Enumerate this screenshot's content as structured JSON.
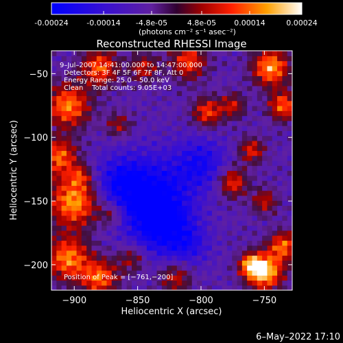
{
  "colorbar": {
    "tick_labels": [
      "-0.00024",
      "-0.00014",
      "-4.8e-05",
      "4.8e-05",
      "0.00014",
      "0.00024"
    ],
    "tick_values": [
      -0.00024,
      -0.00014,
      -4.8e-05,
      4.8e-05,
      0.00014,
      0.00024
    ],
    "range": [
      -0.00024,
      0.00024
    ],
    "units": "(photons cm⁻² s⁻¹ asec⁻²)",
    "colors": [
      "#0000ff",
      "#5a1aa6",
      "#a00000",
      "#ff2a00",
      "#ffa000",
      "#ffffff"
    ]
  },
  "chart_data": {
    "type": "heatmap",
    "title": "Reconstructed RHESSI Image",
    "xlabel": "Heliocentric X (arcsec)",
    "ylabel": "Heliocentric Y (arcsec)",
    "xlim": [
      -918,
      -728
    ],
    "ylim": [
      -220,
      -32
    ],
    "x_ticks": [
      -900,
      -850,
      -800,
      -750
    ],
    "x_tick_labels": [
      "−900",
      "−850",
      "−800",
      "−750"
    ],
    "y_ticks": [
      -50,
      -100,
      -150,
      -200
    ],
    "y_tick_labels": [
      "−50",
      "−100",
      "−150",
      "−200"
    ],
    "z_range": [
      -0.00024,
      0.00024
    ],
    "peak_position": [
      -761,
      -200
    ],
    "annotations": [
      "9–Jul–2007 14:41:00.000 to 14:47:00.000",
      "Detectors: 3F 4F 5F 6F 7F 8F, Att 0",
      "Energy Range: 25.0 – 50.0 keV",
      "Clean    Total counts: 9.05E+03",
      "Position of Peak = [−761,−200]"
    ]
  },
  "footer": {
    "timestamp": "6–May–2022 17:10"
  }
}
